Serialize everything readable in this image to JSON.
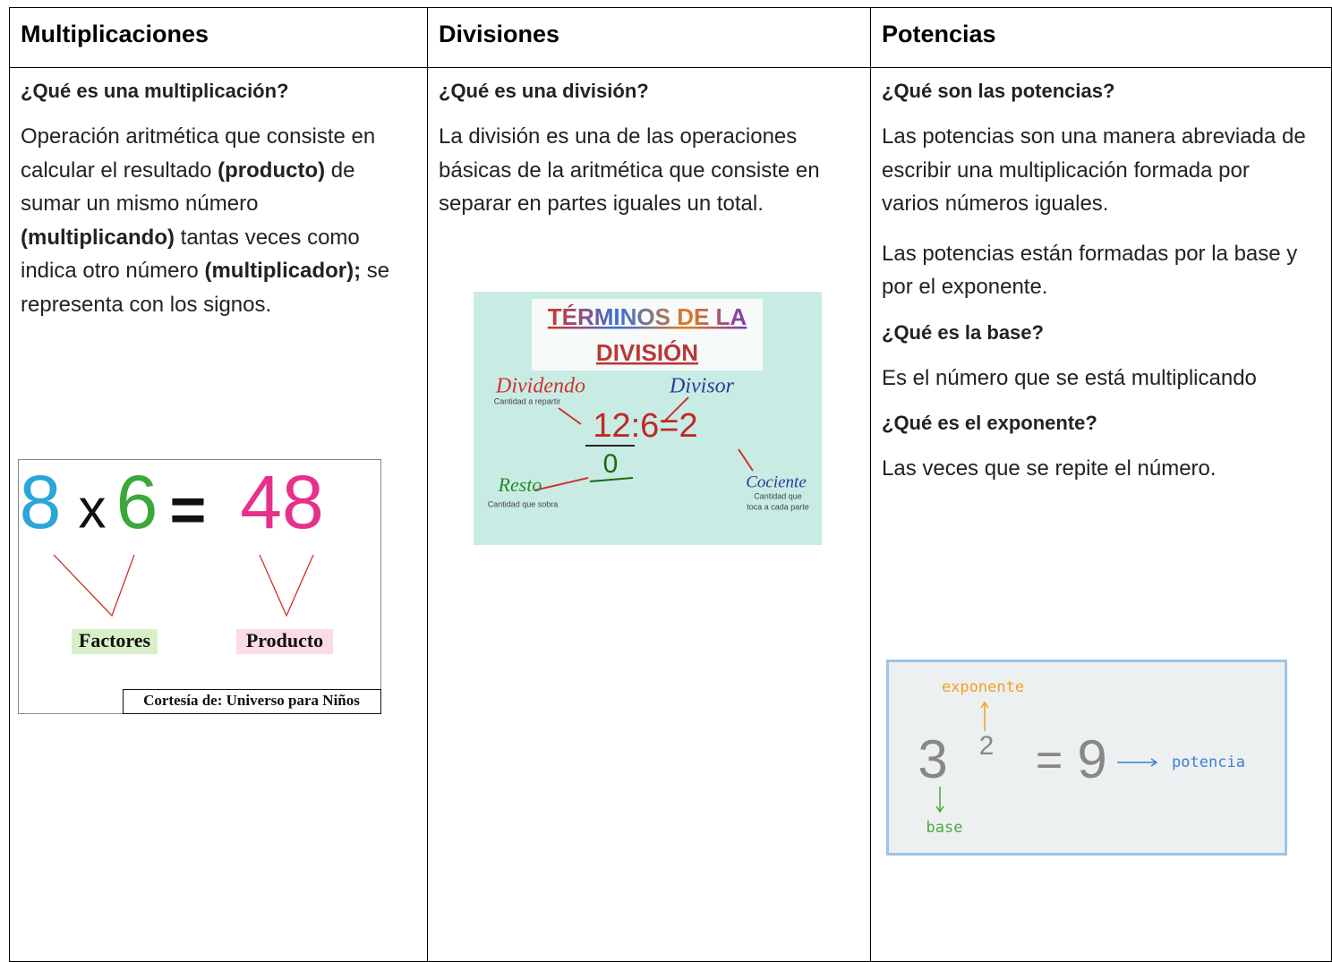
{
  "table": {
    "columns": [
      {
        "header": "Multiplicaciones",
        "blocks": [
          {
            "heading": "¿Qué es una multiplicación?"
          },
          {
            "runs": [
              {
                "text": "Operación aritmética que consiste en calcular el resultado ",
                "bold": false
              },
              {
                "text": "(producto)",
                "bold": true
              },
              {
                "text": " de sumar un mismo número ",
                "bold": false
              },
              {
                "text": "(multiplicando)",
                "bold": true
              },
              {
                "text": " tantas veces como indica otro número ",
                "bold": false
              },
              {
                "text": "(multiplicador);",
                "bold": true
              },
              {
                "text": " se representa con los signos.",
                "bold": false
              }
            ]
          }
        ],
        "figure": {
          "left": "8",
          "op": "x",
          "right": "6",
          "eq": "=",
          "result": "48",
          "factors": "Factores",
          "product": "Producto",
          "credit": "Cortesía de: Universo para Niños"
        }
      },
      {
        "header": "Divisiones",
        "blocks": [
          {
            "heading": "¿Qué es una división?"
          },
          {
            "runs": [
              {
                "text": "La división es una de las operaciones básicas de la aritmética que consiste en separar en partes iguales un total.",
                "bold": false
              }
            ]
          }
        ],
        "figure": {
          "title1": "TÉRMINOS DE LA",
          "title2": "DIVISIÓN",
          "dividend": "Dividendo",
          "dividend_note": "Cantidad a repartir",
          "divisor": "Divisor",
          "equation": "12:6=2",
          "remainder_value": "0",
          "remainder": "Resto",
          "remainder_note": "Cantidad que sobra",
          "quotient": "Cociente",
          "quotient_note1": "Cantidad que",
          "quotient_note2": "toca a cada parte"
        }
      },
      {
        "header": "Potencias",
        "blocks": [
          {
            "heading": "¿Qué son las potencias?"
          },
          {
            "runs": [
              {
                "text": "Las potencias son una manera abreviada de escribir una multiplicación formada por varios números iguales.",
                "bold": false
              }
            ]
          },
          {
            "runs": [
              {
                "text": "Las potencias están formadas por la base y por el exponente.",
                "bold": false
              }
            ]
          },
          {
            "heading": "¿Qué es la base?"
          },
          {
            "runs": [
              {
                "text": "Es el número que se está multiplicando",
                "bold": false
              }
            ]
          },
          {
            "heading": "¿Qué es el exponente?"
          },
          {
            "runs": [
              {
                "text": "Las veces que se repite el número.",
                "bold": false
              }
            ]
          }
        ],
        "figure": {
          "exponent_label": "exponente",
          "base_value": "3",
          "exponent_value": "2",
          "eq": "=",
          "result": "9",
          "power_label": "potencia",
          "base_label": "base"
        }
      }
    ]
  }
}
